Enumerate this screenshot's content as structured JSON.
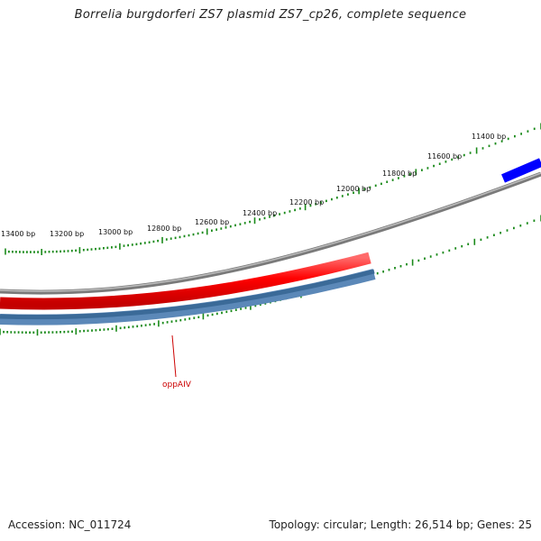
{
  "title": "Borrelia burgdorferi ZS7 plasmid ZS7_cp26, complete sequence",
  "ruler_labels": [
    "13400 bp",
    "13200 bp",
    "13000 bp",
    "12800 bp",
    "12600 bp",
    "12400 bp",
    "12200 bp",
    "12000 bp",
    "11800 bp",
    "11600 bp",
    "11400 bp"
  ],
  "genes": [
    {
      "name": "oppAIV",
      "strand": "reverse",
      "color": "#cc0000"
    }
  ],
  "colors": {
    "backbone": "#808080",
    "forward_feature": "#ff0000",
    "reverse_feature": "#4a7db0",
    "blue_feature": "#0000ff",
    "ticks": "#1a8a1a"
  },
  "footer": {
    "accession": "Accession: NC_011724",
    "summary": "Topology: circular; Length: 26,514 bp; Genes: 25"
  }
}
